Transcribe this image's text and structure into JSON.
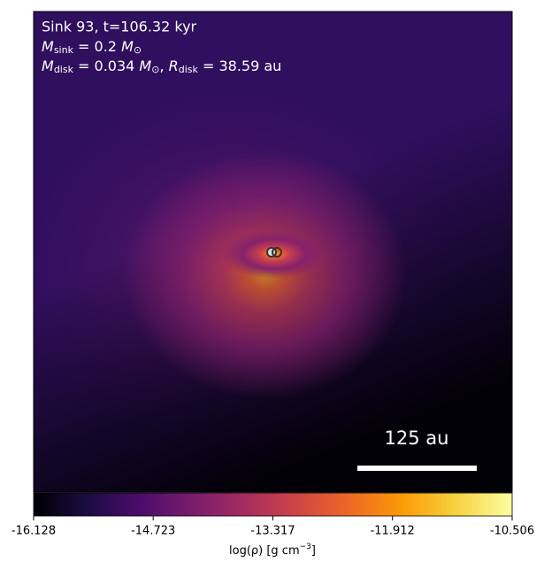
{
  "chart_data": {
    "type": "heatmap",
    "annotations": {
      "line1": "Sink 93, t=106.32 kyr",
      "line2": {
        "symbol": "M",
        "sub": "sink",
        "rest": " = 0.2 ",
        "unit": "M",
        "unit_sub": "⊙"
      },
      "line3": {
        "symbol": "M",
        "sub": "disk",
        "rest": " = 0.034 ",
        "unit": "M",
        "unit_sub": "⊙",
        "sep": ", ",
        "symbol2": "R",
        "sub2": "disk",
        "rest2": " = 38.59 au"
      },
      "scale_bar": "125 au"
    },
    "colorbar": {
      "lim": [
        -16.128,
        -10.506
      ],
      "ticks": [
        -16.128,
        -14.723,
        -13.317,
        -11.912,
        -10.506
      ],
      "label": {
        "main": "log(ρ) [g cm",
        "sup": "−3",
        "end": "]"
      }
    }
  }
}
